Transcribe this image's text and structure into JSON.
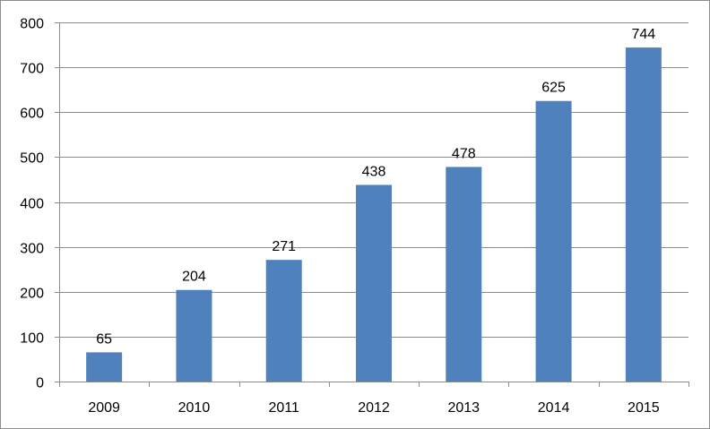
{
  "chart_data": {
    "type": "bar",
    "categories": [
      "2009",
      "2010",
      "2011",
      "2012",
      "2013",
      "2014",
      "2015"
    ],
    "values": [
      65,
      204,
      271,
      438,
      478,
      625,
      744
    ],
    "data_labels": [
      "65",
      "204",
      "271",
      "438",
      "478",
      "625",
      "744"
    ],
    "yticks": [
      "0",
      "100",
      "200",
      "300",
      "400",
      "500",
      "600",
      "700",
      "800"
    ],
    "ylim": [
      0,
      800
    ],
    "grid": true,
    "bar_color": "#4F81BD",
    "grid_color": "#8C8C8C",
    "title": "",
    "xlabel": "",
    "ylabel": ""
  }
}
